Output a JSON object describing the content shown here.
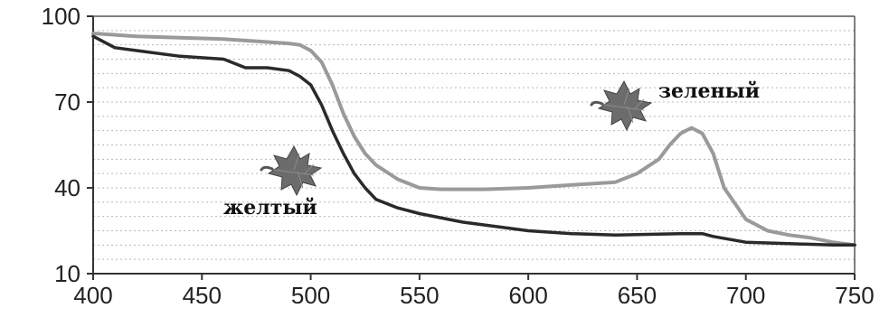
{
  "chart_data": {
    "type": "line",
    "xlim": [
      400,
      750
    ],
    "ylim": [
      10,
      100
    ],
    "x_ticks": [
      400,
      450,
      500,
      550,
      600,
      650,
      700,
      750
    ],
    "y_ticks": [
      10,
      40,
      70,
      100
    ],
    "grid": "horizontal dotted",
    "legend": "inline labels with leaf icons",
    "series": [
      {
        "name": "зеленый",
        "color": "#9a9a9a",
        "icon": "leaf-icon",
        "x": [
          400,
          420,
          440,
          460,
          470,
          480,
          490,
          495,
          500,
          505,
          510,
          515,
          520,
          525,
          530,
          540,
          550,
          560,
          570,
          580,
          600,
          620,
          640,
          650,
          660,
          665,
          670,
          675,
          680,
          685,
          690,
          700,
          710,
          720,
          730,
          740,
          750
        ],
        "y": [
          94,
          93,
          92.5,
          92,
          91.5,
          91,
          90.5,
          90,
          88,
          84,
          76,
          66,
          58,
          52,
          48,
          43,
          40,
          39.5,
          39.5,
          39.5,
          40,
          41,
          42,
          45,
          50,
          55,
          59,
          61,
          59,
          52,
          40,
          29,
          25,
          23.5,
          22.5,
          21,
          20
        ]
      },
      {
        "name": "желтый",
        "color": "#2a2a2a",
        "icon": "leaf-icon",
        "x": [
          400,
          410,
          420,
          440,
          460,
          470,
          480,
          490,
          495,
          500,
          505,
          510,
          515,
          520,
          525,
          530,
          540,
          550,
          570,
          600,
          620,
          640,
          660,
          670,
          680,
          685,
          700,
          720,
          740,
          750
        ],
        "y": [
          93,
          89,
          88,
          86,
          85,
          82,
          82,
          81,
          79,
          76,
          69,
          60,
          52,
          45,
          40,
          36,
          33,
          31,
          28,
          25,
          24,
          23.5,
          23.8,
          24,
          24,
          23,
          21,
          20.5,
          20,
          20
        ]
      }
    ]
  }
}
